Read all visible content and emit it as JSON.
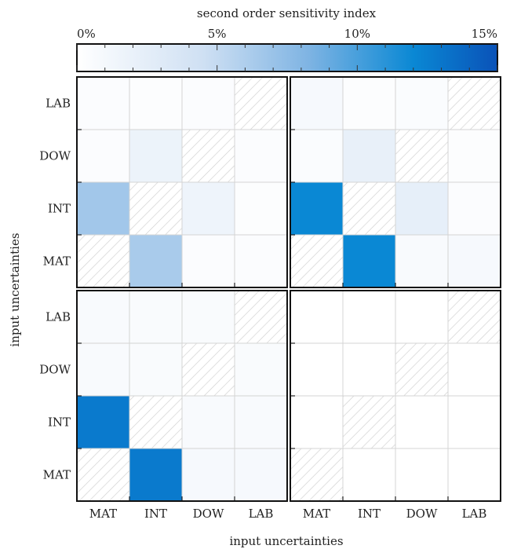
{
  "chart_data": {
    "type": "heatmap",
    "colorbar": {
      "title": "second order sensitivity index",
      "tick_labels": [
        "0%",
        "5%",
        "10%",
        "15%"
      ],
      "tick_values": [
        0,
        5,
        10,
        15
      ],
      "range": [
        0,
        15
      ],
      "colors": [
        "#ffffff",
        "#cfe0f3",
        "#7fb4e3",
        "#0a88d4",
        "#0a52b8"
      ]
    },
    "xlabel": "input uncertainties",
    "ylabel": "input uncertainties",
    "columns": [
      "MAT",
      "INT",
      "DOW",
      "LAB"
    ],
    "rows": [
      "LAB",
      "DOW",
      "INT",
      "MAT"
    ],
    "panels": [
      {
        "values": [
          [
            0.4,
            0.3,
            0.4,
            null
          ],
          [
            0.4,
            1.8,
            null,
            0.4
          ],
          [
            6.6,
            null,
            1.6,
            0.3
          ],
          [
            null,
            6.3,
            0.4,
            0.4
          ]
        ]
      },
      {
        "values": [
          [
            0.8,
            0.3,
            0.5,
            null
          ],
          [
            0.5,
            2.2,
            null,
            0.3
          ],
          [
            12.0,
            null,
            2.3,
            0.4
          ],
          [
            null,
            12.0,
            0.7,
            0.8
          ]
        ]
      },
      {
        "values": [
          [
            0.7,
            0.6,
            0.6,
            null
          ],
          [
            0.7,
            0.6,
            null,
            0.6
          ],
          [
            12.8,
            null,
            0.7,
            0.7
          ],
          [
            null,
            12.8,
            0.8,
            0.8
          ]
        ]
      },
      {
        "values": [
          [
            0.0,
            0.0,
            0.0,
            null
          ],
          [
            0.0,
            0.0,
            null,
            0.0
          ],
          [
            0.0,
            null,
            0.0,
            0.0
          ],
          [
            null,
            0.0,
            0.0,
            0.0
          ]
        ]
      }
    ]
  }
}
